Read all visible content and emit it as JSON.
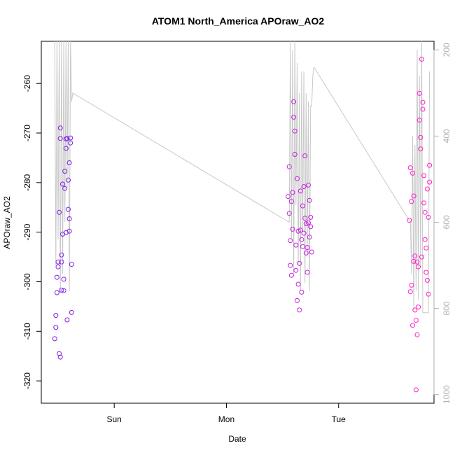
{
  "chart_data": {
    "type": "scatter",
    "title": "ATOM1 North_America APOraw_AO2",
    "xlabel": "Date",
    "ylabel": "APOraw_AO2",
    "x_unit": "days since Sat 00:00",
    "xlim": [
      1.35,
      4.85
    ],
    "ylim": [
      -324.5,
      -251.5
    ],
    "x_ticks": [
      {
        "value": 2,
        "label": "Sun"
      },
      {
        "value": 3,
        "label": "Mon"
      },
      {
        "value": 4,
        "label": "Tue"
      }
    ],
    "y_ticks": [
      -320,
      -310,
      -300,
      -290,
      -280,
      -270,
      -260
    ],
    "y2_ticks": [
      200,
      400,
      600,
      800,
      1000
    ],
    "y2lim": [
      1020,
      180
    ],
    "grid": false,
    "colors": {
      "line": "#c8c8c8",
      "points_early": "#7f1ee8",
      "points_mid": "#c71ee0",
      "points_late": "#ff1ec8",
      "right_axis": "#b0b0b0"
    },
    "line_series": {
      "name": "secondary (right axis)",
      "x": [
        1.47,
        1.48,
        1.49,
        1.5,
        1.51,
        1.52,
        1.53,
        1.54,
        1.55,
        1.56,
        1.57,
        1.58,
        1.59,
        1.6,
        1.61,
        1.62,
        1.63,
        3.56,
        3.57,
        3.58,
        3.59,
        3.6,
        3.61,
        3.62,
        3.63,
        3.64,
        3.65,
        3.66,
        3.67,
        3.68,
        3.69,
        3.7,
        3.71,
        3.72,
        3.73,
        3.74,
        3.75,
        3.76,
        3.77,
        3.78,
        4.64,
        4.65,
        4.66,
        4.67,
        4.68,
        4.69,
        4.7,
        4.71,
        4.72,
        4.73,
        4.74,
        4.75,
        4.76,
        4.77,
        4.78,
        4.79,
        4.8,
        4.81
      ],
      "y": [
        180,
        700,
        180,
        640,
        180,
        760,
        180,
        720,
        180,
        600,
        180,
        520,
        180,
        760,
        180,
        320,
        300,
        600,
        180,
        640,
        200,
        720,
        180,
        560,
        230,
        700,
        300,
        760,
        250,
        620,
        250,
        740,
        300,
        680,
        320,
        760,
        330,
        330,
        260,
        240,
        600,
        720,
        400,
        800,
        420,
        760,
        200,
        780,
        260,
        700,
        180,
        810,
        810,
        810,
        810,
        810,
        810,
        250
      ]
    },
    "series": [
      {
        "x": [
          1.47,
          1.48,
          1.48,
          1.49,
          1.49,
          1.5,
          1.5,
          1.51,
          1.51,
          1.52,
          1.52,
          1.52,
          1.53,
          1.53,
          1.53,
          1.54,
          1.54,
          1.55,
          1.55,
          1.56,
          1.56,
          1.57,
          1.57,
          1.57,
          1.58,
          1.58,
          1.59,
          1.59,
          1.6,
          1.6,
          1.6,
          1.61,
          1.61,
          1.62,
          1.62
        ],
        "y": [
          -311.5,
          -309.2,
          -306.8,
          -302.2,
          -299.1,
          -297.0,
          -296.0,
          -286.0,
          -314.5,
          -315.2,
          -271.1,
          -269.0,
          -301.7,
          -296.0,
          -294.6,
          -290.4,
          -280.3,
          -301.8,
          -299.5,
          -281.2,
          -277.7,
          -273.1,
          -271.2,
          -290.1,
          -307.7,
          -271.1,
          -285.4,
          -279.5,
          -276.0,
          -287.3,
          -289.8,
          -271.0,
          -272.0,
          -296.5,
          -306.2
        ]
      },
      {
        "x": [
          3.55,
          3.56,
          3.56,
          3.57,
          3.57,
          3.58,
          3.58,
          3.59,
          3.59,
          3.6,
          3.6,
          3.61,
          3.61,
          3.62,
          3.62,
          3.63,
          3.63,
          3.64,
          3.64,
          3.65,
          3.65,
          3.66,
          3.66,
          3.67,
          3.67,
          3.68,
          3.68,
          3.69,
          3.69,
          3.7,
          3.7,
          3.71,
          3.71,
          3.72,
          3.72,
          3.73,
          3.73,
          3.74,
          3.74,
          3.75,
          3.75,
          3.76
        ],
        "y": [
          -282.8,
          -276.8,
          -286.2,
          -291.7,
          -296.7,
          -298.7,
          -283.8,
          -282.0,
          -289.4,
          -266.8,
          -263.7,
          -269.6,
          -274.3,
          -297.7,
          -292.6,
          -303.8,
          -279.2,
          -300.5,
          -289.8,
          -305.7,
          -296.3,
          -281.7,
          -289.6,
          -291.5,
          -302.1,
          -284.7,
          -292.9,
          -290.2,
          -280.8,
          -287.2,
          -274.6,
          -294.2,
          -288.3,
          -293.1,
          -298.1,
          -288.1,
          -280.5,
          -283.6,
          -291.0,
          -288.9,
          -287.0,
          -294.0
        ]
      },
      {
        "x": [
          4.63,
          4.64,
          4.64,
          4.65,
          4.65,
          4.66,
          4.66,
          4.67,
          4.67,
          4.68,
          4.68,
          4.69,
          4.69,
          4.7,
          4.7,
          4.71,
          4.71,
          4.72,
          4.72,
          4.73,
          4.73,
          4.74,
          4.74,
          4.75,
          4.75,
          4.76,
          4.76,
          4.77,
          4.77,
          4.78,
          4.78,
          4.79,
          4.79,
          4.8,
          4.8,
          4.81,
          4.81
        ],
        "y": [
          -287.6,
          -302.0,
          -277.0,
          -283.8,
          -300.7,
          -278.1,
          -308.8,
          -295.9,
          -282.7,
          -305.7,
          -294.8,
          -321.8,
          -307.8,
          -310.7,
          -296.0,
          -297.0,
          -305.1,
          -262.0,
          -267.4,
          -270.9,
          -273.2,
          -255.1,
          -295.0,
          -263.8,
          -265.2,
          -278.6,
          -284.1,
          -286.0,
          -291.5,
          -293.2,
          -298.1,
          -299.7,
          -281.3,
          -287.0,
          -302.5,
          -276.5,
          -279.9
        ]
      }
    ]
  }
}
